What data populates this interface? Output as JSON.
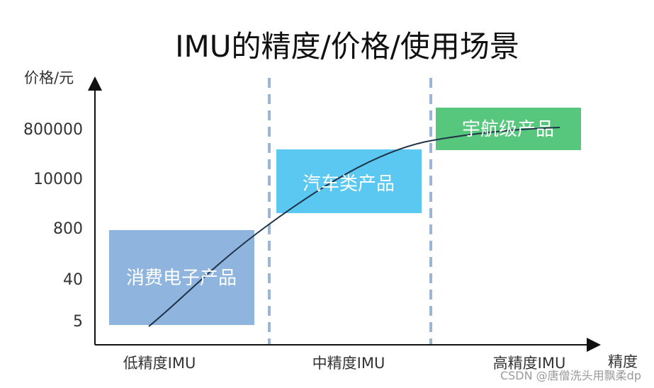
{
  "title": "IMU的精度/价格/使用场景",
  "y_axis_label": "价格/元",
  "x_axis_label": "精度",
  "y_ticks": [
    "800000",
    "10000",
    "800",
    "40",
    "5"
  ],
  "x_categories": [
    "低精度IMU",
    "中精度IMU",
    "高精度IMU"
  ],
  "regions": [
    {
      "label": "消费电子产品",
      "color": "#8fb4de"
    },
    {
      "label": "汽车类产品",
      "color": "#5bc8f2"
    },
    {
      "label": "宇航级产品",
      "color": "#57c77e"
    }
  ],
  "divider_color": "#9ab6d4",
  "curve_color": "#1f3347",
  "watermark": "CSDN @唐僧洗头用飘柔dp"
}
